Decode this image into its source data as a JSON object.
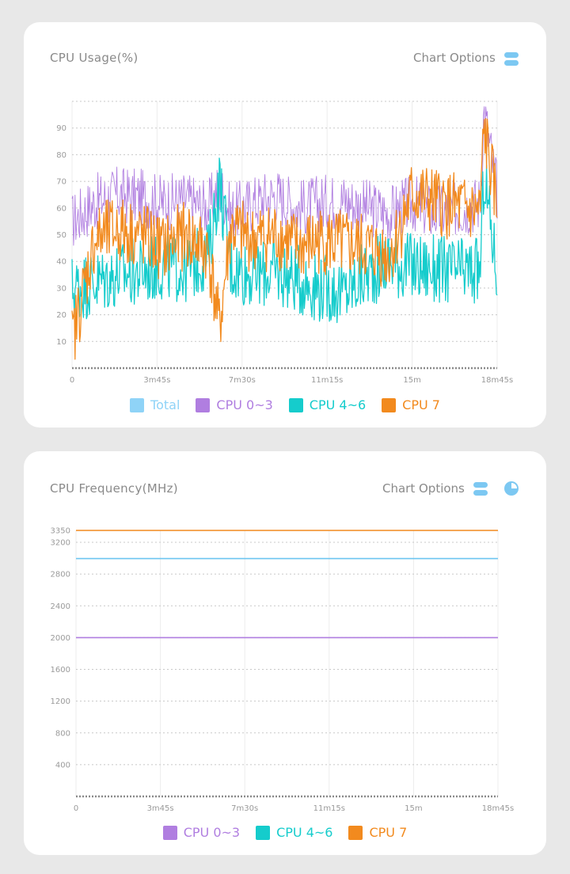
{
  "cards": [
    {
      "title": "CPU Usage(%)",
      "options_label": "Chart Options"
    },
    {
      "title": "CPU Frequency(MHz)",
      "options_label": "Chart Options"
    }
  ],
  "colors": {
    "total": "#8fd3f7",
    "cpu03": "#b07ee0",
    "cpu46": "#15cccc",
    "cpu7": "#f28a1e",
    "freq_mid": "#6cc5f0"
  },
  "chart_data": [
    {
      "type": "line",
      "title": "CPU Usage(%)",
      "x_ticks": [
        "0",
        "3m45s",
        "7m30s",
        "11m15s",
        "15m",
        "18m45s"
      ],
      "x_range_seconds": [
        0,
        1125
      ],
      "y_ticks": [
        "10",
        "20",
        "30",
        "40",
        "50",
        "60",
        "70",
        "80",
        "90"
      ],
      "ylim": [
        0,
        100
      ],
      "legend": [
        "Total",
        "CPU 0~3",
        "CPU 4~6",
        "CPU 7"
      ],
      "series": [
        {
          "name": "CPU 0~3",
          "color": "#b07ee0",
          "x": [
            0,
            60,
            120,
            180,
            240,
            300,
            360,
            390,
            420,
            480,
            540,
            600,
            660,
            720,
            780,
            840,
            900,
            960,
            1020,
            1080,
            1090,
            1125
          ],
          "values": [
            55,
            62,
            65,
            64,
            62,
            63,
            60,
            68,
            58,
            62,
            65,
            60,
            62,
            63,
            60,
            58,
            62,
            58,
            60,
            62,
            97,
            66
          ]
        },
        {
          "name": "CPU 4~6",
          "color": "#15cccc",
          "x": [
            0,
            60,
            120,
            180,
            240,
            300,
            360,
            390,
            420,
            480,
            540,
            600,
            660,
            720,
            780,
            840,
            900,
            960,
            1020,
            1080,
            1090,
            1125
          ],
          "values": [
            30,
            32,
            35,
            36,
            38,
            37,
            42,
            70,
            38,
            35,
            36,
            33,
            30,
            28,
            35,
            40,
            38,
            37,
            36,
            36,
            73,
            35
          ]
        },
        {
          "name": "CPU 7",
          "color": "#f28a1e",
          "x": [
            0,
            60,
            120,
            180,
            240,
            300,
            360,
            390,
            420,
            480,
            540,
            600,
            660,
            720,
            780,
            840,
            900,
            960,
            1020,
            1080,
            1090,
            1125
          ],
          "values": [
            10,
            48,
            52,
            50,
            45,
            50,
            44,
            15,
            52,
            48,
            50,
            45,
            48,
            46,
            45,
            42,
            65,
            62,
            60,
            58,
            90,
            60
          ]
        }
      ]
    },
    {
      "type": "line",
      "title": "CPU Frequency(MHz)",
      "x_ticks": [
        "0",
        "3m45s",
        "7m30s",
        "11m15s",
        "15m",
        "18m45s"
      ],
      "x_range_seconds": [
        0,
        1125
      ],
      "y_ticks": [
        "400",
        "800",
        "1200",
        "1600",
        "2000",
        "2400",
        "2800",
        "3200",
        "3350"
      ],
      "ylim": [
        0,
        3350
      ],
      "legend": [
        "CPU 0~3",
        "CPU 4~6",
        "CPU 7"
      ],
      "series": [
        {
          "name": "CPU 0~3",
          "color": "#b07ee0",
          "x": [
            0,
            1125
          ],
          "values": [
            2000,
            2000
          ]
        },
        {
          "name": "CPU 4~6",
          "color": "#6cc5f0",
          "x": [
            0,
            1125
          ],
          "values": [
            2995,
            2995
          ]
        },
        {
          "name": "CPU 7",
          "color": "#f28a1e",
          "x": [
            0,
            1125
          ],
          "values": [
            3350,
            3350
          ]
        }
      ]
    }
  ]
}
